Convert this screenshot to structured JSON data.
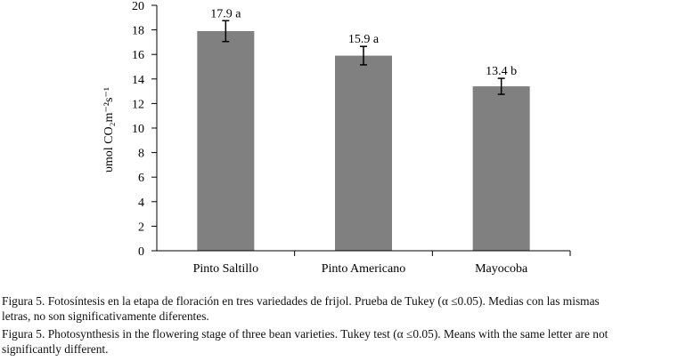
{
  "chart_data": {
    "type": "bar",
    "categories": [
      "Pinto Saltillo",
      "Pinto Americano",
      "Mayocoba"
    ],
    "values": [
      17.9,
      15.9,
      13.4
    ],
    "error": [
      0.85,
      0.75,
      0.65
    ],
    "data_labels": [
      "17.9 a",
      "15.9 a",
      "13.4 b"
    ],
    "ylabel": "υmol CO₂m⁻²s⁻¹",
    "ylim": [
      0,
      20
    ],
    "yticks": [
      "0",
      "2",
      "4",
      "6",
      "8",
      "10",
      "12",
      "14",
      "16",
      "18",
      "20"
    ],
    "bar_color": "#808080",
    "grid": false
  },
  "caption": {
    "es_line1": "Figura 5. Fotosíntesis en la etapa de floración en tres variedades de frijol. Prueba de Tukey (α ≤0.05). Medias con las mismas",
    "es_line2": "letras, no son significativamente diferentes.",
    "en_line1": "Figura 5. Photosynthesis in the flowering stage of three bean varieties. Tukey test (α ≤0.05). Means with the same letter are not",
    "en_line2": "significantly different."
  }
}
